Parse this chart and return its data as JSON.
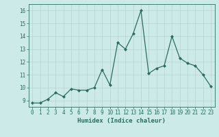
{
  "x": [
    0,
    1,
    2,
    3,
    4,
    5,
    6,
    7,
    8,
    9,
    10,
    11,
    12,
    13,
    14,
    15,
    16,
    17,
    18,
    19,
    20,
    21,
    22,
    23
  ],
  "y": [
    8.8,
    8.8,
    9.1,
    9.6,
    9.3,
    9.9,
    9.8,
    9.8,
    10.0,
    11.4,
    10.2,
    13.5,
    13.0,
    14.2,
    16.0,
    11.1,
    11.5,
    11.7,
    14.0,
    12.3,
    11.9,
    11.7,
    11.0,
    10.1
  ],
  "line_color": "#2d6b5e",
  "marker": "D",
  "marker_size": 2.0,
  "bg_color": "#cceae8",
  "grid_color": "#b8d4d0",
  "xlabel": "Humidex (Indice chaleur)",
  "ylim": [
    8.5,
    16.5
  ],
  "xlim": [
    -0.5,
    23.5
  ],
  "yticks": [
    9,
    10,
    11,
    12,
    13,
    14,
    15,
    16
  ],
  "xticks": [
    0,
    1,
    2,
    3,
    4,
    5,
    6,
    7,
    8,
    9,
    10,
    11,
    12,
    13,
    14,
    15,
    16,
    17,
    18,
    19,
    20,
    21,
    22,
    23
  ],
  "tick_color": "#2d6b5e",
  "label_fontsize": 6.5,
  "tick_fontsize": 5.5,
  "linewidth": 0.9
}
